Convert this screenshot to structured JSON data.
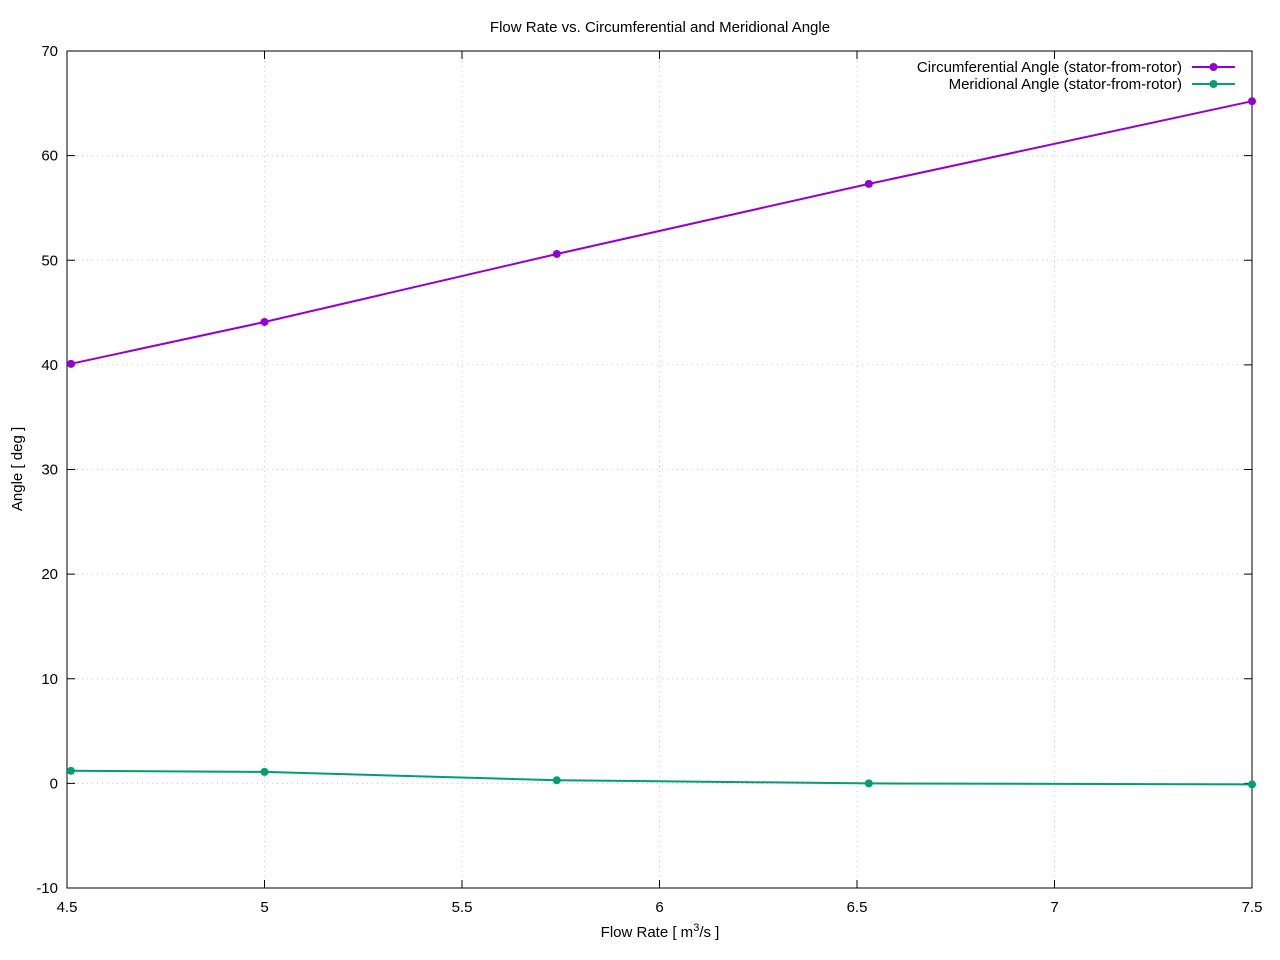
{
  "chart_data": {
    "type": "line",
    "title": "Flow Rate vs. Circumferential and Meridional Angle",
    "xlabel": "Flow Rate [ m³/s ]",
    "ylabel": "Angle [ deg ]",
    "xlim": [
      4.5,
      7.5
    ],
    "ylim": [
      -10,
      70
    ],
    "xticks": [
      4.5,
      5,
      5.5,
      6,
      6.5,
      7,
      7.5
    ],
    "xtick_labels": [
      "4.5",
      "5",
      "5.5",
      "6",
      "6.5",
      "7",
      "7.5"
    ],
    "yticks": [
      -10,
      0,
      10,
      20,
      30,
      40,
      50,
      60,
      70
    ],
    "ytick_labels": [
      "-10",
      "0",
      "10",
      "20",
      "30",
      "40",
      "50",
      "60",
      "70"
    ],
    "grid": true,
    "legend_position": "top-right",
    "series": [
      {
        "name": "Circumferential Angle (stator-from-rotor)",
        "color": "#9400d3",
        "x": [
          4.51,
          5.0,
          5.74,
          6.53,
          7.5
        ],
        "y": [
          40.1,
          44.1,
          50.6,
          57.3,
          65.2
        ]
      },
      {
        "name": "Meridional Angle (stator-from-rotor)",
        "color": "#009e73",
        "x": [
          4.51,
          5.0,
          5.74,
          6.53,
          7.5
        ],
        "y": [
          1.2,
          1.1,
          0.3,
          0.0,
          -0.1
        ]
      }
    ]
  }
}
